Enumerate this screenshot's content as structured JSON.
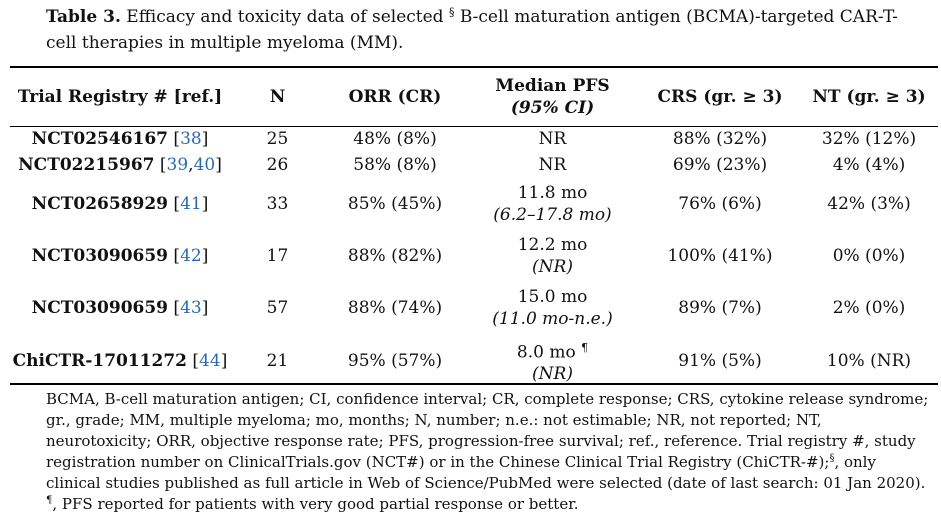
{
  "caption": {
    "label": "Table 3.",
    "text_before": "Efficacy and toxicity data of selected",
    "mark": "§",
    "text_after": "B-cell maturation antigen (BCMA)-targeted CAR-T-cell therapies in multiple myeloma (MM)."
  },
  "headers": {
    "trial": "Trial Registry # [ref.]",
    "n": "N",
    "orr": "ORR (CR)",
    "pfs_line1": "Median PFS",
    "pfs_line2": "(95% CI)",
    "crs": "CRS (gr. ≥ 3)",
    "nt": "NT (gr. ≥ 3)"
  },
  "rows": [
    {
      "trial": "NCT02546167",
      "refs": [
        "38"
      ],
      "n": "25",
      "orr": "48% (8%)",
      "pfs": "NR",
      "pfs_ci": "",
      "pfs_mark": "",
      "crs": "88% (32%)",
      "nt": "32% (12%)"
    },
    {
      "trial": "NCT02215967",
      "refs": [
        "39",
        "40"
      ],
      "n": "26",
      "orr": "58% (8%)",
      "pfs": "NR",
      "pfs_ci": "",
      "pfs_mark": "",
      "crs": "69% (23%)",
      "nt": "4% (4%)"
    },
    {
      "trial": "NCT02658929",
      "refs": [
        "41"
      ],
      "n": "33",
      "orr": "85% (45%)",
      "pfs": "11.8 mo",
      "pfs_ci": "(6.2–17.8 mo)",
      "pfs_mark": "",
      "crs": "76% (6%)",
      "nt": "42% (3%)"
    },
    {
      "trial": "NCT03090659",
      "refs": [
        "42"
      ],
      "n": "17",
      "orr": "88% (82%)",
      "pfs": "12.2 mo",
      "pfs_ci": "(NR)",
      "pfs_mark": "",
      "crs": "100% (41%)",
      "nt": "0% (0%)"
    },
    {
      "trial": "NCT03090659",
      "refs": [
        "43"
      ],
      "n": "57",
      "orr": "88% (74%)",
      "pfs": "15.0 mo",
      "pfs_ci": "(11.0 mo-n.e.)",
      "pfs_mark": "",
      "crs": "89% (7%)",
      "nt": "2% (0%)"
    },
    {
      "trial": "ChiCTR-17011272",
      "refs": [
        "44"
      ],
      "n": "21",
      "orr": "95% (57%)",
      "pfs": "8.0 mo",
      "pfs_ci": "(NR)",
      "pfs_mark": "¶",
      "crs": "91% (5%)",
      "nt": "10% (NR)"
    }
  ],
  "footnote": {
    "abbrev": "BCMA, B-cell maturation antigen; CI, confidence interval; CR, complete response; CRS, cytokine release syndrome; gr., grade; MM, multiple myeloma; mo, months; N, number; n.e.: not estimable; NR, not reported; NT, neurotoxicity; ORR, objective response rate; PFS, progression-free survival; ref., reference.  Trial registry #, study registration number on ClinicalTrials.gov (NCT#) or in the Chinese Clinical Trial Registry (ChiCTR-#);",
    "mark1": "§",
    "text1": ", only clinical studies published as full article in Web of Science/PubMed were selected (date of last search: 01 Jan 2020).",
    "mark2": "¶",
    "text2": ", PFS reported for patients with very good partial response or better."
  }
}
